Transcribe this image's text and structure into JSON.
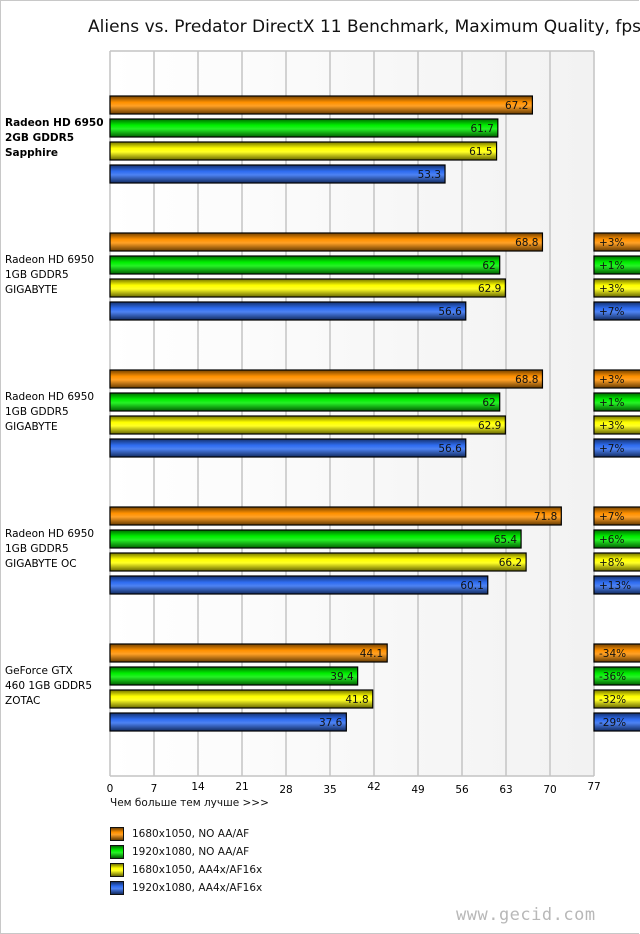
{
  "chart_data": {
    "type": "bar",
    "orientation": "horizontal",
    "title": "Aliens vs. Predator DirectX 11 Benchmark, Maximum Quality, fps",
    "xlabel": "Чем больше тем лучше >>>",
    "ylabel": "",
    "xlim": [
      0,
      77
    ],
    "x_ticks": [
      "0",
      "7",
      "14",
      "21",
      "28",
      "35",
      "42",
      "49",
      "56",
      "63",
      "70",
      "77"
    ],
    "grid": true,
    "legend_position": "bottom-left",
    "categories": [
      {
        "label": "Radeon HD 6950\n2GB GDDR5\nSapphire",
        "bold": true
      },
      {
        "label": "Radeon HD 6950\n1GB GDDR5\nGIGABYTE",
        "bold": false
      },
      {
        "label": "Radeon HD 6950\n1GB GDDR5\nGIGABYTE",
        "bold": false
      },
      {
        "label": "Radeon HD 6950\n1GB GDDR5\nGIGABYTE OC",
        "bold": false
      },
      {
        "label": "GeForce GTX\n460 1GB GDDR5\nZOTAC",
        "bold": false
      }
    ],
    "series": [
      {
        "name": "1680x1050, NO AA/AF",
        "color": "#ff9000",
        "values": [
          67.2,
          68.8,
          68.8,
          71.8,
          44.1
        ],
        "diff": [
          null,
          "+3%",
          "+3%",
          "+7%",
          "-34%"
        ]
      },
      {
        "name": "1920x1080, NO AA/AF",
        "color": "#00ee00",
        "values": [
          61.7,
          62,
          62,
          65.4,
          39.4
        ],
        "diff": [
          null,
          "+1%",
          "+1%",
          "+6%",
          "-36%"
        ]
      },
      {
        "name": "1680x1050, AA4x/AF16x",
        "color": "#ffff00",
        "values": [
          61.5,
          62.9,
          62.9,
          66.2,
          41.8
        ],
        "diff": [
          null,
          "+3%",
          "+3%",
          "+8%",
          "-32%"
        ]
      },
      {
        "name": "1920x1080, AA4x/AF16x",
        "color": "#2e6cf0",
        "values": [
          53.3,
          56.6,
          56.6,
          60.1,
          37.6
        ],
        "diff": [
          null,
          "+7%",
          "+7%",
          "+13%",
          "-29%"
        ]
      }
    ]
  },
  "watermark": "www.gecid.com"
}
